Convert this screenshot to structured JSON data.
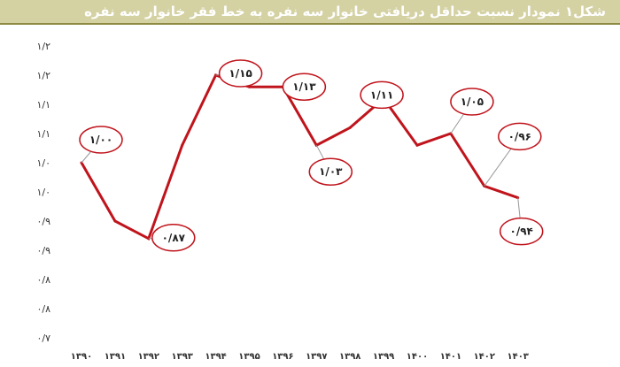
{
  "header": {
    "title": "شکل۱ نمودار نسبت حداقل دریافتی خانوار سه نفره به خط فقر خانوار سه نفره"
  },
  "colors": {
    "line": "#c0141c",
    "callout_border": "#c0141c",
    "title_bg": "#d4d1a3"
  },
  "chart_data": {
    "type": "line",
    "title": "شکل۱ نمودار نسبت حداقل دریافتی خانوار سه نفره به خط فقر خانوار سه نفره",
    "xlabel": "",
    "ylabel": "",
    "ylim": [
      0.7,
      1.2
    ],
    "grid": false,
    "y_tick_labels": [
      "۰/۷",
      "۰/۸",
      "۰/۸",
      "۰/۹",
      "۰/۹",
      "۱/۰",
      "۱/۰",
      "۱/۱",
      "۱/۱",
      "۱/۲",
      "۱/۲"
    ],
    "categories": [
      "۱۳۹۰",
      "۱۳۹۱",
      "۱۳۹۲",
      "۱۳۹۳",
      "۱۳۹۴",
      "۱۳۹۵",
      "۱۳۹۶",
      "۱۳۹۷",
      "۱۳۹۸",
      "۱۳۹۹",
      "۱۴۰۰",
      "۱۴۰۱",
      "۱۴۰۲",
      "۱۴۰۳"
    ],
    "values": [
      1.0,
      0.9,
      0.87,
      1.03,
      1.15,
      1.13,
      1.13,
      1.03,
      1.06,
      1.11,
      1.03,
      1.05,
      0.96,
      0.94
    ],
    "labels": [
      {
        "index": 0,
        "text": "۱/۰۰"
      },
      {
        "index": 2,
        "text": "۰/۸۷"
      },
      {
        "index": 4,
        "text": "۱/۱۵"
      },
      {
        "index": 6,
        "text": "۱/۱۳"
      },
      {
        "index": 7,
        "text": "۱/۰۳"
      },
      {
        "index": 9,
        "text": "۱/۱۱"
      },
      {
        "index": 11,
        "text": "۱/۰۵"
      },
      {
        "index": 12,
        "text": "۰/۹۶"
      },
      {
        "index": 13,
        "text": "۰/۹۴"
      }
    ]
  }
}
